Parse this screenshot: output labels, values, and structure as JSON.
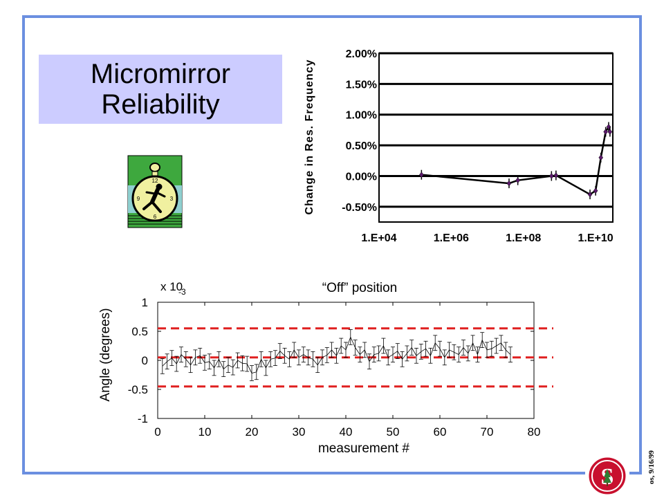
{
  "slide": {
    "title_line1": "Micromirror",
    "title_line2": "Reliability",
    "footer_date": "os, 9/16/99",
    "clock_icon": "stopwatch-runner-icon",
    "logo_icon": "stanford-logo-icon",
    "colors": {
      "frame": "#6b8fe0",
      "title_bg": "#ccccff",
      "dashed": "#e02020",
      "line_marker": "#5a1a6a"
    }
  },
  "chart_data": [
    {
      "type": "line",
      "ylabel": "Change in Res. Frequency",
      "xlabel": "",
      "x_scale": "log",
      "xlim": [
        10000.0,
        30000000000.0
      ],
      "ylim": [
        -0.75,
        2.0
      ],
      "y_ticks": [
        2.0,
        1.5,
        1.0,
        0.5,
        0.0,
        -0.5
      ],
      "y_tick_labels": [
        "2.00%",
        "1.50%",
        "1.00%",
        "0.50%",
        "0.00%",
        "-0.50%"
      ],
      "x_ticks": [
        10000.0,
        1000000.0,
        100000000.0,
        10000000000.0
      ],
      "x_tick_labels": [
        "1.E+04",
        "1.E+06",
        "1.E+08",
        "1.E+10"
      ],
      "grid": true,
      "series": [
        {
          "x": [
            150000.0,
            40000000.0,
            70000000.0,
            600000000.0,
            800000000.0,
            7000000000.0,
            10000000000.0,
            14000000000.0,
            19000000000.0,
            23000000000.0,
            25000000000.0
          ],
          "y": [
            0.02,
            -0.12,
            -0.07,
            0.0,
            0.01,
            -0.3,
            -0.24,
            0.3,
            0.72,
            0.8,
            0.72
          ]
        }
      ]
    },
    {
      "type": "scatter",
      "title": "“Off” position",
      "xlabel": "measurement #",
      "ylabel": "Angle (degrees)",
      "scale_label": "x 10",
      "scale_exponent": "-3",
      "xlim": [
        0,
        80
      ],
      "ylim": [
        -1,
        1
      ],
      "x_ticks": [
        0,
        10,
        20,
        30,
        40,
        50,
        60,
        70,
        80
      ],
      "y_ticks": [
        1,
        0.5,
        0,
        -0.5,
        -1
      ],
      "y_tick_labels": [
        "1",
        "0.5",
        "0",
        "-0.5",
        "-1"
      ],
      "reference_lines": [
        0.55,
        0.05,
        -0.45
      ],
      "error_bar_halfwidth": 0.13,
      "series": [
        {
          "x": [
            1,
            2,
            3,
            4,
            5,
            6,
            7,
            8,
            9,
            10,
            11,
            12,
            13,
            14,
            15,
            16,
            17,
            18,
            19,
            20,
            21,
            22,
            23,
            24,
            25,
            26,
            27,
            28,
            29,
            30,
            31,
            32,
            33,
            34,
            35,
            36,
            37,
            38,
            39,
            40,
            41,
            42,
            43,
            44,
            45,
            46,
            47,
            48,
            49,
            50,
            51,
            52,
            53,
            54,
            55,
            56,
            57,
            58,
            59,
            60,
            61,
            62,
            63,
            64,
            65,
            66,
            67,
            68,
            69,
            70,
            71,
            72,
            73,
            74,
            75
          ],
          "y": [
            -0.1,
            -0.02,
            0.04,
            -0.06,
            0.1,
            0.02,
            -0.08,
            0.05,
            0.08,
            -0.04,
            -0.02,
            -0.13,
            0.02,
            -0.15,
            -0.08,
            -0.12,
            0.0,
            -0.05,
            -0.06,
            -0.22,
            -0.2,
            0.02,
            -0.13,
            0.02,
            0.04,
            0.16,
            0.08,
            0.02,
            0.18,
            0.05,
            0.1,
            0.05,
            0.02,
            -0.08,
            0.05,
            0.09,
            0.18,
            0.08,
            0.25,
            0.18,
            0.4,
            0.22,
            0.1,
            0.18,
            -0.02,
            0.1,
            0.12,
            0.25,
            0.05,
            0.1,
            0.16,
            0.02,
            0.12,
            0.22,
            0.08,
            0.15,
            0.2,
            0.08,
            0.3,
            0.2,
            0.05,
            0.18,
            0.14,
            0.1,
            0.22,
            0.12,
            0.3,
            0.1,
            0.35,
            0.18,
            0.2,
            0.25,
            0.3,
            0.18,
            0.1
          ]
        }
      ]
    }
  ]
}
